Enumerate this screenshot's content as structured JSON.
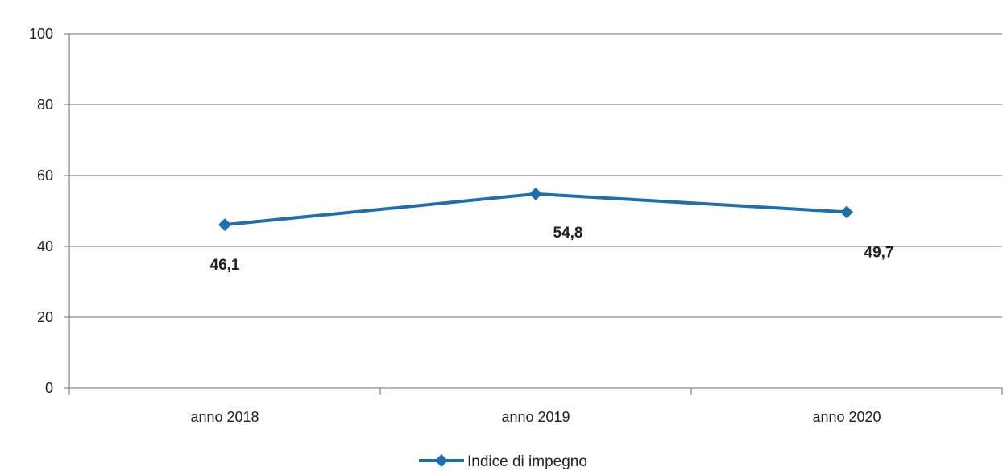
{
  "chart_data": {
    "type": "line",
    "title": "",
    "xlabel": "",
    "ylabel": "",
    "categories": [
      "anno 2018",
      "anno 2019",
      "anno 2020"
    ],
    "series": [
      {
        "name": "Indice di impegno",
        "values": [
          46.1,
          54.8,
          49.7
        ],
        "value_labels": [
          "46,1",
          "54,8",
          "49,7"
        ],
        "color": "#1f6fad",
        "marker": "diamond"
      }
    ],
    "ylim": [
      0,
      100
    ],
    "yticks": [
      0,
      20,
      40,
      60,
      80,
      100
    ],
    "grid": true,
    "legend": "bottom"
  }
}
